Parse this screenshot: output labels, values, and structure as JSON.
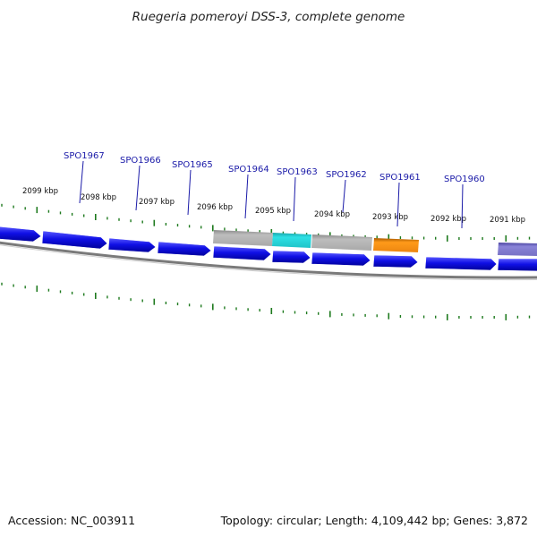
{
  "title": "Ruegeria pomeroyi DSS-3, complete genome",
  "footer": {
    "accession": "Accession: NC_003911",
    "summary": "Topology: circular; Length: 4,109,442 bp; Genes: 3,872"
  },
  "colors": {
    "gene": "#1010e6",
    "backbone": "#7a7a7a",
    "tick": "#1e7a1e",
    "label": "#1a1aa8",
    "grey_feature": "#b4b4b4",
    "cyan_feature": "#22cdd2",
    "orange_feature": "#f08a10",
    "purple_feature": "#7a74c8"
  },
  "scale_labels": [
    "2099 kbp",
    "2098 kbp",
    "2097 kbp",
    "2096 kbp",
    "2095 kbp",
    "2094 kbp",
    "2093 kbp",
    "2092 kbp",
    "2091 kbp"
  ],
  "gene_labels": [
    "SPO1967",
    "SPO1966",
    "SPO1965",
    "SPO1964",
    "SPO1963",
    "SPO1962",
    "SPO1961",
    "SPO1960"
  ]
}
